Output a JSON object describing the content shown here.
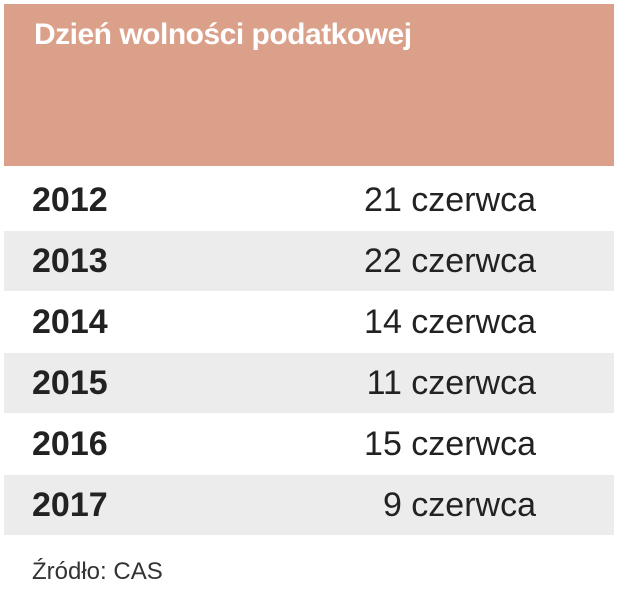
{
  "header": {
    "title": "Dzień wolności podatkowej"
  },
  "table": {
    "rows": [
      [
        "2012",
        "21 czerwca"
      ],
      [
        "2013",
        "22 czerwca"
      ],
      [
        "2014",
        "14 czerwca"
      ],
      [
        "2015",
        "11 czerwca"
      ],
      [
        "2016",
        "15 czerwca"
      ],
      [
        "2017",
        "9 czerwca"
      ]
    ]
  },
  "footer": {
    "source": "Źródło: CAS"
  }
}
